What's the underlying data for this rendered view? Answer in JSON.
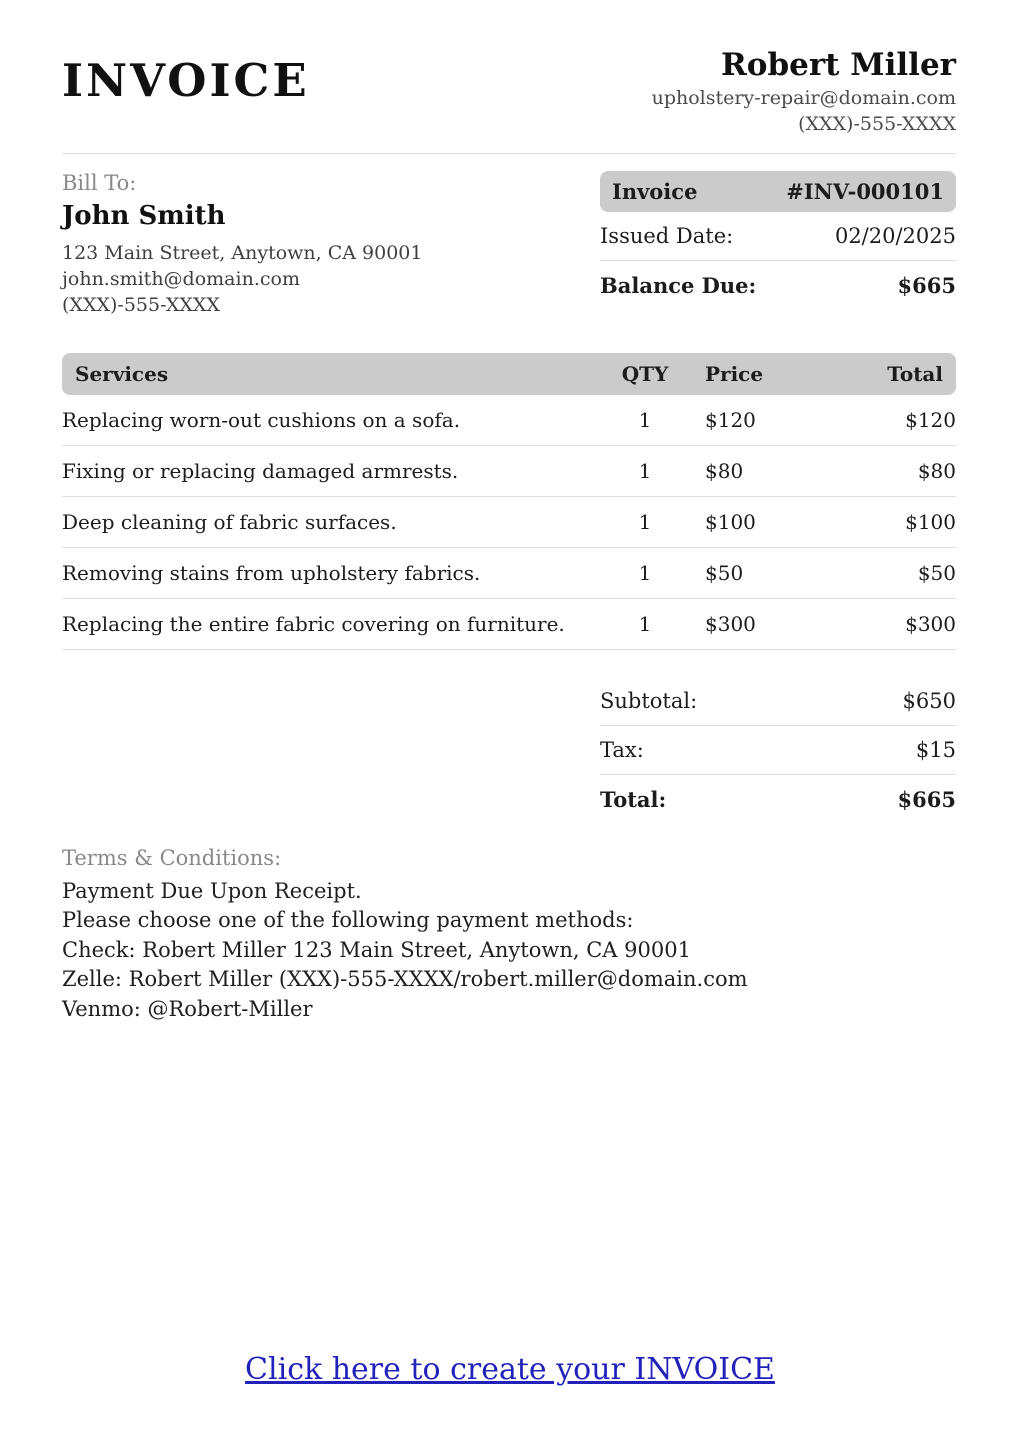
{
  "header": {
    "title": "INVOICE",
    "business": {
      "name": "Robert Miller",
      "email": "upholstery-repair@domain.com",
      "phone": "(XXX)-555-XXXX"
    }
  },
  "bill_to": {
    "label": "Bill To:",
    "name": "John Smith",
    "address": "123 Main Street, Anytown, CA 90001",
    "email": "john.smith@domain.com",
    "phone": "(XXX)-555-XXXX"
  },
  "invoice_meta": {
    "invoice_label": "Invoice",
    "invoice_number": "#INV-000101",
    "issued_date_label": "Issued Date:",
    "issued_date": "02/20/2025",
    "balance_due_label": "Balance Due:",
    "balance_due": "$665"
  },
  "services_table": {
    "headers": [
      "Services",
      "QTY",
      "Price",
      "Total"
    ],
    "rows": [
      {
        "service": "Replacing worn-out cushions on a sofa.",
        "qty": "1",
        "price": "$120",
        "total": "$120"
      },
      {
        "service": "Fixing or replacing damaged armrests.",
        "qty": "1",
        "price": "$80",
        "total": "$80"
      },
      {
        "service": "Deep cleaning of fabric surfaces.",
        "qty": "1",
        "price": "$100",
        "total": "$100"
      },
      {
        "service": "Removing stains from upholstery fabrics.",
        "qty": "1",
        "price": "$50",
        "total": "$50"
      },
      {
        "service": "Replacing the entire fabric covering on furniture.",
        "qty": "1",
        "price": "$300",
        "total": "$300"
      }
    ]
  },
  "totals": {
    "subtotal_label": "Subtotal:",
    "subtotal": "$650",
    "tax_label": "Tax:",
    "tax": "$15",
    "total_label": "Total:",
    "total": "$665"
  },
  "terms": {
    "label": "Terms & Conditions:",
    "lines": [
      "Payment Due Upon Receipt.",
      "Please choose one of the following payment methods:",
      "Check: Robert Miller 123 Main Street, Anytown, CA 90001",
      "Zelle: Robert Miller (XXX)-555-XXXX/robert.miller@domain.com",
      "Venmo: @Robert-Miller"
    ]
  },
  "footer_link": {
    "label": "Click here to create your INVOICE"
  },
  "colors": {
    "bar_gray": "#cbcbcb",
    "divider_gray": "#dcdcdc",
    "row_border_gray": "#e0e0e0",
    "muted_text": "#888888",
    "secondary_text": "#3f3f3f",
    "link_blue": "#2222bb"
  }
}
